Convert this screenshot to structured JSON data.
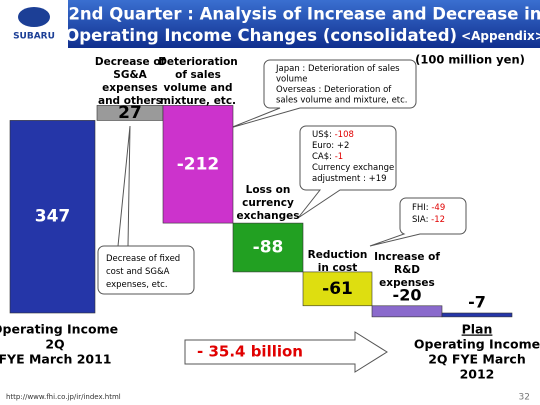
{
  "header": {
    "logo": "SUBARU",
    "title_line1": "2nd Quarter : Analysis of Increase and Decrease in",
    "title_line2": "Operating Income Changes (consolidated)",
    "title_suffix": "<Appendix>"
  },
  "chart_data": {
    "type": "waterfall",
    "unit": "(100 million yen)",
    "categories": [
      [
        "Operating Income",
        "2Q",
        "FYE March 2011"
      ],
      [
        "Decrease of",
        "SG&A",
        "expenses",
        "and others"
      ],
      [
        "Deterioration",
        "of sales",
        "volume and",
        "mixture, etc."
      ],
      [
        "Loss on",
        "currency",
        "exchanges"
      ],
      [
        "Reduction",
        "in cost"
      ],
      [
        "Increase of",
        "R&D",
        "expenses"
      ],
      [
        "Plan",
        "Operating Income",
        "2Q FYE March",
        "2012"
      ]
    ],
    "values": [
      347,
      27,
      -212,
      -88,
      -61,
      -20,
      -7
    ],
    "totals": [
      true,
      false,
      false,
      false,
      false,
      false,
      true
    ],
    "colors": [
      "#2536a8",
      "#9a9a9a",
      "#cc33cc",
      "#22a022",
      "#dede10",
      "#8a6acc",
      "#2536a8"
    ],
    "arrow_label": "- 35.4 billion",
    "callouts": [
      {
        "lines": [
          {
            "label": "Japan : Deterioration of sales"
          },
          {
            "label": "volume"
          },
          {
            "label": "Overseas : Deterioration of"
          },
          {
            "label": "sales volume and mixture, etc."
          }
        ]
      },
      {
        "lines": [
          {
            "label": "US$: ",
            "value": "-108"
          },
          {
            "label": "Euro: +2"
          },
          {
            "label": "CA$: ",
            "value": "-1"
          },
          {
            "label": "Currency exchange"
          },
          {
            "label": "adjustment : +19"
          }
        ]
      },
      {
        "lines": [
          {
            "label": "FHI: ",
            "value": "-49"
          },
          {
            "label": "SIA: ",
            "value": "-12"
          }
        ]
      },
      {
        "lines": [
          {
            "label": "Decrease of fixed"
          },
          {
            "label": "cost and SG&A"
          },
          {
            "label": "expenses, etc."
          }
        ]
      }
    ]
  },
  "footer": {
    "url": "http://www.fhi.co.jp/ir/index.html",
    "page": "32"
  }
}
